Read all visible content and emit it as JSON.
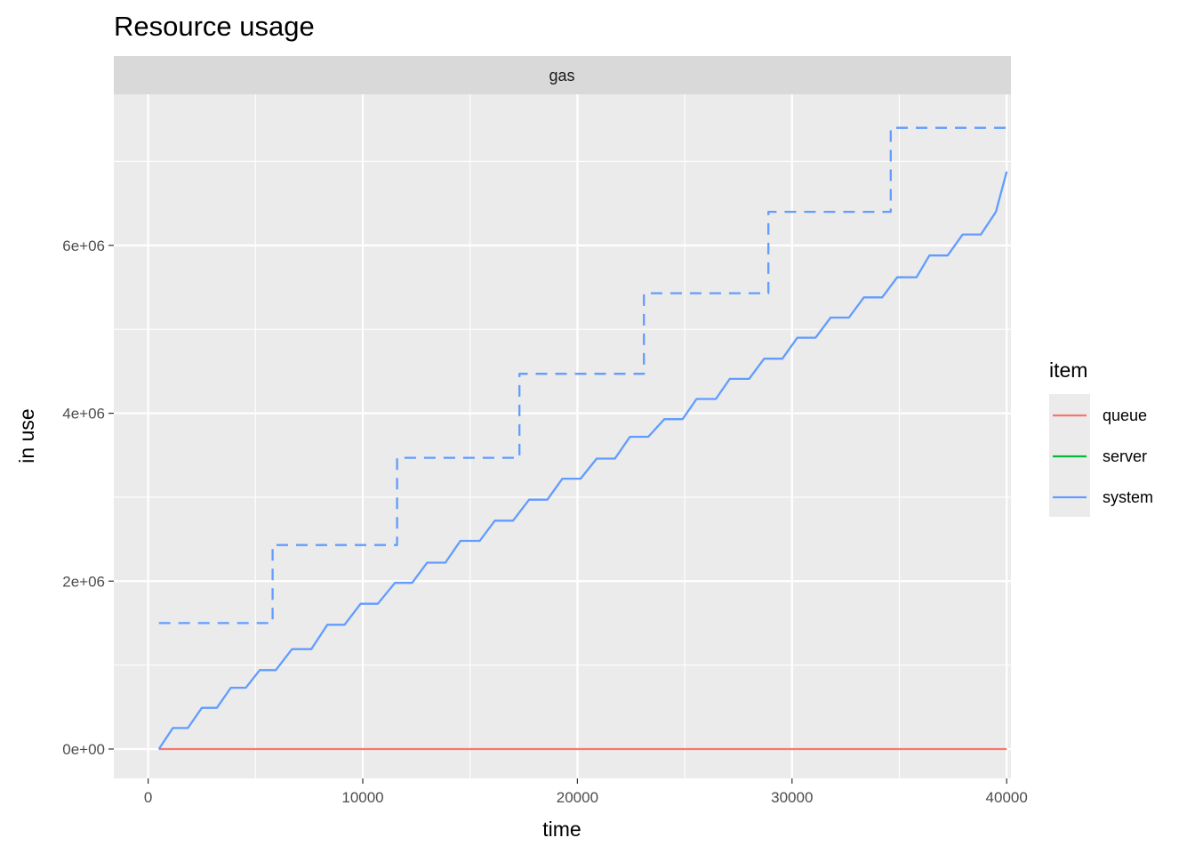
{
  "chart_data": {
    "type": "line",
    "title": "Resource usage",
    "facet": "gas",
    "xlabel": "time",
    "ylabel": "in use",
    "xlim": [
      -1600,
      40200
    ],
    "ylim": [
      -350000,
      7800000
    ],
    "x_ticks": [
      0,
      10000,
      20000,
      30000,
      40000
    ],
    "x_tick_labels": [
      "0",
      "10000",
      "20000",
      "30000",
      "40000"
    ],
    "y_ticks": [
      0,
      2000000,
      4000000,
      6000000
    ],
    "y_tick_labels": [
      "0e+00",
      "2e+06",
      "4e+06",
      "6e+06"
    ],
    "grid": true,
    "legend": {
      "title": "item",
      "position": "right",
      "entries": [
        {
          "label": "queue",
          "color": "#F8766D"
        },
        {
          "label": "server",
          "color": "#00BA38"
        },
        {
          "label": "system",
          "color": "#619CFF"
        }
      ]
    },
    "series": [
      {
        "name": "queue",
        "color": "#F8766D",
        "style": "solid",
        "points": [
          [
            500,
            0
          ],
          [
            40000,
            0
          ]
        ]
      },
      {
        "name": "system",
        "color": "#619CFF",
        "style": "solid",
        "points": [
          [
            500,
            0
          ],
          [
            1150,
            250000
          ],
          [
            1850,
            250000
          ],
          [
            2500,
            490000
          ],
          [
            3200,
            490000
          ],
          [
            3850,
            730000
          ],
          [
            4550,
            730000
          ],
          [
            5200,
            940000
          ],
          [
            5950,
            940000
          ],
          [
            6700,
            1190000
          ],
          [
            7600,
            1190000
          ],
          [
            8350,
            1480000
          ],
          [
            9150,
            1480000
          ],
          [
            9900,
            1730000
          ],
          [
            10700,
            1730000
          ],
          [
            11500,
            1980000
          ],
          [
            12300,
            1980000
          ],
          [
            13000,
            2220000
          ],
          [
            13850,
            2220000
          ],
          [
            14550,
            2480000
          ],
          [
            15450,
            2480000
          ],
          [
            16150,
            2720000
          ],
          [
            17000,
            2720000
          ],
          [
            17750,
            2970000
          ],
          [
            18600,
            2970000
          ],
          [
            19300,
            3220000
          ],
          [
            20150,
            3220000
          ],
          [
            20900,
            3460000
          ],
          [
            21750,
            3460000
          ],
          [
            22450,
            3720000
          ],
          [
            23300,
            3720000
          ],
          [
            24050,
            3930000
          ],
          [
            24900,
            3930000
          ],
          [
            25550,
            4170000
          ],
          [
            26450,
            4170000
          ],
          [
            27100,
            4410000
          ],
          [
            28000,
            4410000
          ],
          [
            28700,
            4650000
          ],
          [
            29550,
            4650000
          ],
          [
            30250,
            4900000
          ],
          [
            31100,
            4900000
          ],
          [
            31800,
            5140000
          ],
          [
            32650,
            5140000
          ],
          [
            33350,
            5380000
          ],
          [
            34200,
            5380000
          ],
          [
            34900,
            5620000
          ],
          [
            35800,
            5620000
          ],
          [
            36400,
            5880000
          ],
          [
            37250,
            5880000
          ],
          [
            37950,
            6130000
          ],
          [
            38800,
            6130000
          ],
          [
            39500,
            6400000
          ],
          [
            40000,
            6880000
          ]
        ]
      },
      {
        "name": "system",
        "color": "#619CFF",
        "style": "dashed",
        "points": [
          [
            500,
            1500000
          ],
          [
            5800,
            1500000
          ],
          [
            5800,
            2430000
          ],
          [
            11600,
            2430000
          ],
          [
            11600,
            3470000
          ],
          [
            17300,
            3470000
          ],
          [
            17300,
            4470000
          ],
          [
            23100,
            4470000
          ],
          [
            23100,
            5430000
          ],
          [
            28900,
            5430000
          ],
          [
            28900,
            6400000
          ],
          [
            34600,
            6400000
          ],
          [
            34600,
            7400000
          ],
          [
            40000,
            7400000
          ]
        ]
      }
    ]
  }
}
